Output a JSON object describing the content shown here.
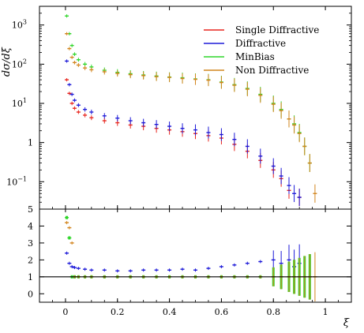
{
  "chart_data": {
    "type": "scatter",
    "yscale": "log",
    "xlabel": "ξ",
    "ylabel": "dσ/dξ",
    "xlim": [
      -0.1,
      1.1
    ],
    "ylim": [
      0.02,
      3000
    ],
    "ratio_ylim": [
      -0.5,
      5
    ],
    "x_ticks": [
      "0",
      "0.2",
      "0.4",
      "0.6",
      "0.8",
      "1"
    ],
    "x_tick_values": [
      0,
      0.2,
      0.4,
      0.6,
      0.8,
      1.0
    ],
    "y_ticks": [
      {
        "base": "10",
        "exp": "3",
        "value": 1000
      },
      {
        "base": "10",
        "exp": "2",
        "value": 100
      },
      {
        "base": "10",
        "exp": "1",
        "value": 10
      },
      {
        "base": "1",
        "exp": "",
        "value": 1
      },
      {
        "base": "10",
        "exp": "−1",
        "value": 0.1
      }
    ],
    "ratio_ticks": [
      "0",
      "1",
      "2",
      "3",
      "4",
      "5"
    ],
    "ratio_tick_values": [
      0,
      1,
      2,
      3,
      4,
      5
    ],
    "legend_position": "top-right",
    "series": [
      {
        "name": "Single Diffractive",
        "color": "#e8251e",
        "x": [
          0.005,
          0.015,
          0.025,
          0.035,
          0.05,
          0.075,
          0.1,
          0.15,
          0.2,
          0.25,
          0.3,
          0.35,
          0.4,
          0.45,
          0.5,
          0.55,
          0.6,
          0.65,
          0.7,
          0.75,
          0.8,
          0.83,
          0.86,
          0.9
        ],
        "y": [
          40,
          18,
          10,
          7.5,
          6,
          5,
          4.3,
          3.6,
          3.2,
          2.8,
          2.6,
          2.3,
          2.1,
          1.9,
          1.7,
          1.5,
          1.3,
          0.9,
          0.6,
          0.35,
          0.2,
          0.12,
          0.06,
          0.04
        ]
      },
      {
        "name": "Diffractive",
        "color": "#1d1ad8",
        "x": [
          0.005,
          0.015,
          0.025,
          0.035,
          0.05,
          0.075,
          0.1,
          0.15,
          0.2,
          0.25,
          0.3,
          0.35,
          0.4,
          0.45,
          0.5,
          0.55,
          0.6,
          0.65,
          0.7,
          0.75,
          0.8,
          0.83,
          0.86,
          0.88,
          0.9
        ],
        "y": [
          120,
          30,
          17,
          12,
          9,
          7,
          6,
          4.8,
          4.2,
          3.6,
          3.2,
          2.9,
          2.6,
          2.3,
          2.1,
          1.8,
          1.6,
          1.2,
          0.8,
          0.45,
          0.25,
          0.14,
          0.08,
          0.05,
          0.04
        ],
        "ratio": [
          2.4,
          1.8,
          1.6,
          1.55,
          1.5,
          1.45,
          1.4,
          1.4,
          1.35,
          1.35,
          1.4,
          1.4,
          1.4,
          1.45,
          1.4,
          1.5,
          1.6,
          1.7,
          1.8,
          1.9,
          2.0,
          1.8,
          2.0,
          1.6,
          1.8
        ]
      },
      {
        "name": "MinBias",
        "color": "#2fd62a",
        "x": [
          0.005,
          0.015,
          0.025,
          0.035,
          0.05,
          0.075,
          0.1,
          0.15,
          0.2,
          0.25,
          0.3,
          0.35,
          0.4,
          0.45,
          0.5,
          0.55,
          0.6,
          0.65,
          0.7,
          0.75,
          0.8,
          0.83,
          0.86,
          0.88,
          0.9,
          0.92,
          0.94
        ],
        "y": [
          1700,
          600,
          300,
          180,
          130,
          100,
          85,
          70,
          62,
          57,
          53,
          50,
          47,
          45,
          42,
          40,
          35,
          30,
          24,
          17,
          10,
          7,
          4,
          3,
          1.8,
          0.8,
          0.3
        ],
        "ratio": [
          4.5,
          3.3,
          1.0,
          1.0,
          1.0,
          1.0,
          1.0,
          1.0,
          1.0,
          1.0,
          1.0,
          1.0,
          1.0,
          1.0,
          1.0,
          1.0,
          1.0,
          1.0,
          1.0,
          1.0,
          1.0,
          1.0,
          1.0,
          1.0,
          1.0,
          1.0,
          1.0
        ]
      },
      {
        "name": "Non Diffractive",
        "color": "#d2851e",
        "x": [
          0.005,
          0.015,
          0.025,
          0.035,
          0.05,
          0.075,
          0.1,
          0.15,
          0.2,
          0.25,
          0.3,
          0.35,
          0.4,
          0.45,
          0.5,
          0.55,
          0.6,
          0.65,
          0.7,
          0.75,
          0.8,
          0.83,
          0.86,
          0.88,
          0.9,
          0.92,
          0.94,
          0.96
        ],
        "y": [
          600,
          250,
          150,
          110,
          95,
          80,
          72,
          64,
          58,
          54,
          51,
          48,
          46,
          43,
          41,
          39,
          34,
          29,
          23,
          16,
          9.5,
          6.5,
          4,
          2.8,
          1.7,
          0.8,
          0.3,
          0.05
        ],
        "ratio": [
          4.2,
          3.9,
          3.0,
          1.0,
          1.0,
          1.0,
          1.0,
          1.0,
          1.0,
          1.0,
          1.0,
          1.0,
          1.0,
          1.0,
          1.0,
          1.0,
          1.0,
          1.0,
          1.0,
          1.0,
          1.0,
          1.0,
          1.0,
          1.0,
          1.0,
          1.0,
          1.0,
          1.0
        ]
      }
    ]
  }
}
